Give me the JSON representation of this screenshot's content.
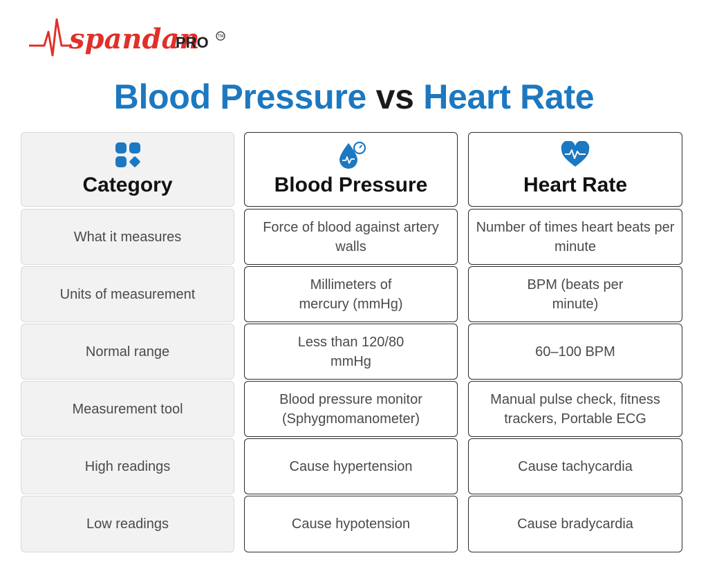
{
  "brand": {
    "wordmark": "spandan",
    "suffix": "PRO",
    "tm": "TM",
    "colors": {
      "red": "#e0302a",
      "dark": "#222222"
    }
  },
  "title": {
    "part1": "Blood Pressure",
    "vs": "vs",
    "part2": "Heart Rate",
    "accent": "#1c78c0"
  },
  "headers": [
    {
      "label": "Category",
      "icon": "category-grid-icon"
    },
    {
      "label": "Blood Pressure",
      "icon": "blood-drop-gauge-icon"
    },
    {
      "label": "Heart Rate",
      "icon": "heart-pulse-icon"
    }
  ],
  "rows": [
    {
      "category": "What it measures",
      "bp": "Force of blood against artery walls",
      "hr": "Number of times heart beats per minute"
    },
    {
      "category": "Units of measurement",
      "bp": "Millimeters of mercury (mmHg)",
      "hr": "BPM (beats per minute)"
    },
    {
      "category": "Normal range",
      "bp": "Less than 120/80 mmHg",
      "hr": "60–100 BPM"
    },
    {
      "category": "Measurement tool",
      "bp": "Blood pressure monitor (Sphygmomanometer)",
      "hr": "Manual pulse check, fitness trackers, Portable ECG"
    },
    {
      "category": "High readings",
      "bp": "Cause hypertension",
      "hr": "Cause tachycardia"
    },
    {
      "category": "Low readings",
      "bp": "Cause hypotension",
      "hr": "Cause bradycardia"
    }
  ]
}
